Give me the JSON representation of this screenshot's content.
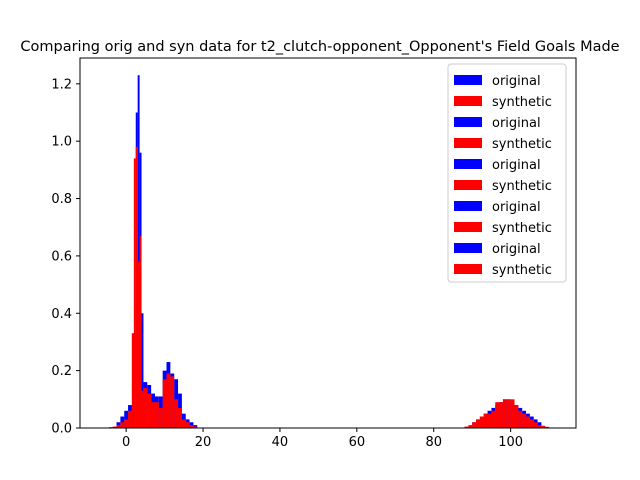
{
  "chart_data": {
    "type": "bar",
    "title": "Comparing orig and syn data for t2_clutch-opponent_Opponent's Field Goals Made",
    "xlabel": "",
    "ylabel": "",
    "xlim": [
      -12,
      117
    ],
    "ylim": [
      0,
      1.29
    ],
    "x_ticks": [
      0,
      20,
      40,
      60,
      80,
      100
    ],
    "y_ticks": [
      0.0,
      0.2,
      0.4,
      0.6,
      0.8,
      1.0,
      1.2
    ],
    "y_tick_labels": [
      "0.0",
      "0.2",
      "0.4",
      "0.6",
      "0.8",
      "1.0",
      "1.2"
    ],
    "legend_position": "top-right",
    "colors": {
      "original": "#0000ff",
      "synthetic": "#ff0000"
    },
    "legend": [
      {
        "label": "original",
        "color": "#0000ff"
      },
      {
        "label": "synthetic",
        "color": "#ff0000"
      },
      {
        "label": "original",
        "color": "#0000ff"
      },
      {
        "label": "synthetic",
        "color": "#ff0000"
      },
      {
        "label": "original",
        "color": "#0000ff"
      },
      {
        "label": "synthetic",
        "color": "#ff0000"
      },
      {
        "label": "original",
        "color": "#0000ff"
      },
      {
        "label": "synthetic",
        "color": "#ff0000"
      },
      {
        "label": "original",
        "color": "#0000ff"
      },
      {
        "label": "synthetic",
        "color": "#ff0000"
      }
    ],
    "series": [
      {
        "name": "original",
        "color": "#0000ff",
        "bins": [
          [
            -2.5,
            -1.5,
            0.02
          ],
          [
            -1.5,
            -0.5,
            0.04
          ],
          [
            -0.5,
            0.5,
            0.06
          ],
          [
            0.5,
            1.5,
            0.08
          ],
          [
            1.5,
            2.5,
            0.33
          ],
          [
            2.5,
            3.0,
            1.1
          ],
          [
            3.0,
            3.5,
            1.23
          ],
          [
            3.5,
            4.0,
            0.96
          ],
          [
            4.0,
            4.5,
            0.4
          ],
          [
            4.5,
            5.5,
            0.16
          ],
          [
            5.5,
            6.5,
            0.15
          ],
          [
            6.5,
            7.5,
            0.12
          ],
          [
            7.5,
            8.5,
            0.11
          ],
          [
            8.5,
            9.5,
            0.11
          ],
          [
            9.5,
            10.5,
            0.2
          ],
          [
            10.5,
            11.5,
            0.23
          ],
          [
            11.5,
            12.5,
            0.19
          ],
          [
            12.5,
            13.5,
            0.17
          ],
          [
            13.5,
            14.5,
            0.12
          ],
          [
            14.5,
            15.5,
            0.05
          ],
          [
            15.5,
            16.5,
            0.03
          ],
          [
            16.5,
            17.5,
            0.02
          ],
          [
            17.5,
            18.5,
            0.01
          ],
          [
            90,
            91,
            0.02
          ],
          [
            91,
            92,
            0.03
          ],
          [
            92,
            93,
            0.04
          ],
          [
            93,
            94,
            0.05
          ],
          [
            94,
            95,
            0.06
          ],
          [
            95,
            96,
            0.07
          ],
          [
            96,
            97,
            0.08
          ],
          [
            97,
            98,
            0.09
          ],
          [
            98,
            99,
            0.1
          ],
          [
            99,
            100,
            0.1
          ],
          [
            100,
            101,
            0.09
          ],
          [
            101,
            102,
            0.08
          ],
          [
            102,
            103,
            0.07
          ],
          [
            103,
            104,
            0.06
          ],
          [
            104,
            105,
            0.05
          ],
          [
            105,
            106,
            0.04
          ],
          [
            106,
            107,
            0.03
          ],
          [
            107,
            108,
            0.02
          ]
        ]
      },
      {
        "name": "synthetic",
        "color": "#ff0000",
        "bins": [
          [
            -4.5,
            -3.5,
            0.003
          ],
          [
            -3.5,
            -2.5,
            0.005
          ],
          [
            -2.5,
            -1.5,
            0.01
          ],
          [
            -1.5,
            -0.5,
            0.02
          ],
          [
            -0.5,
            0.5,
            0.03
          ],
          [
            0.5,
            1.5,
            0.06
          ],
          [
            1.5,
            2.0,
            0.33
          ],
          [
            2.0,
            2.5,
            0.94
          ],
          [
            2.5,
            3.0,
            0.98
          ],
          [
            3.0,
            3.5,
            0.58
          ],
          [
            3.5,
            4.0,
            0.67
          ],
          [
            4.0,
            4.5,
            0.13
          ],
          [
            4.5,
            5.5,
            0.14
          ],
          [
            5.5,
            6.5,
            0.12
          ],
          [
            6.5,
            7.5,
            0.09
          ],
          [
            7.5,
            8.5,
            0.09
          ],
          [
            8.5,
            9.5,
            0.07
          ],
          [
            9.5,
            10.5,
            0.17
          ],
          [
            10.5,
            11.5,
            0.19
          ],
          [
            11.5,
            12.5,
            0.18
          ],
          [
            12.5,
            13.5,
            0.1
          ],
          [
            13.5,
            14.5,
            0.07
          ],
          [
            14.5,
            15.5,
            0.03
          ],
          [
            15.5,
            16.5,
            0.02
          ],
          [
            16.5,
            17.5,
            0.01
          ],
          [
            17.5,
            18.5,
            0.005
          ],
          [
            88,
            89,
            0.005
          ],
          [
            89,
            90,
            0.01
          ],
          [
            90,
            91,
            0.02
          ],
          [
            91,
            92,
            0.03
          ],
          [
            92,
            93,
            0.04
          ],
          [
            93,
            94,
            0.05
          ],
          [
            94,
            95,
            0.05
          ],
          [
            95,
            96,
            0.06
          ],
          [
            96,
            97,
            0.09
          ],
          [
            97,
            98,
            0.09
          ],
          [
            98,
            99,
            0.1
          ],
          [
            99,
            100,
            0.1
          ],
          [
            100,
            101,
            0.1
          ],
          [
            101,
            102,
            0.08
          ],
          [
            102,
            103,
            0.06
          ],
          [
            103,
            104,
            0.05
          ],
          [
            104,
            105,
            0.04
          ],
          [
            105,
            106,
            0.03
          ],
          [
            106,
            107,
            0.02
          ],
          [
            107,
            108,
            0.01
          ],
          [
            108,
            109,
            0.008
          ],
          [
            109,
            110,
            0.004
          ]
        ]
      }
    ]
  }
}
